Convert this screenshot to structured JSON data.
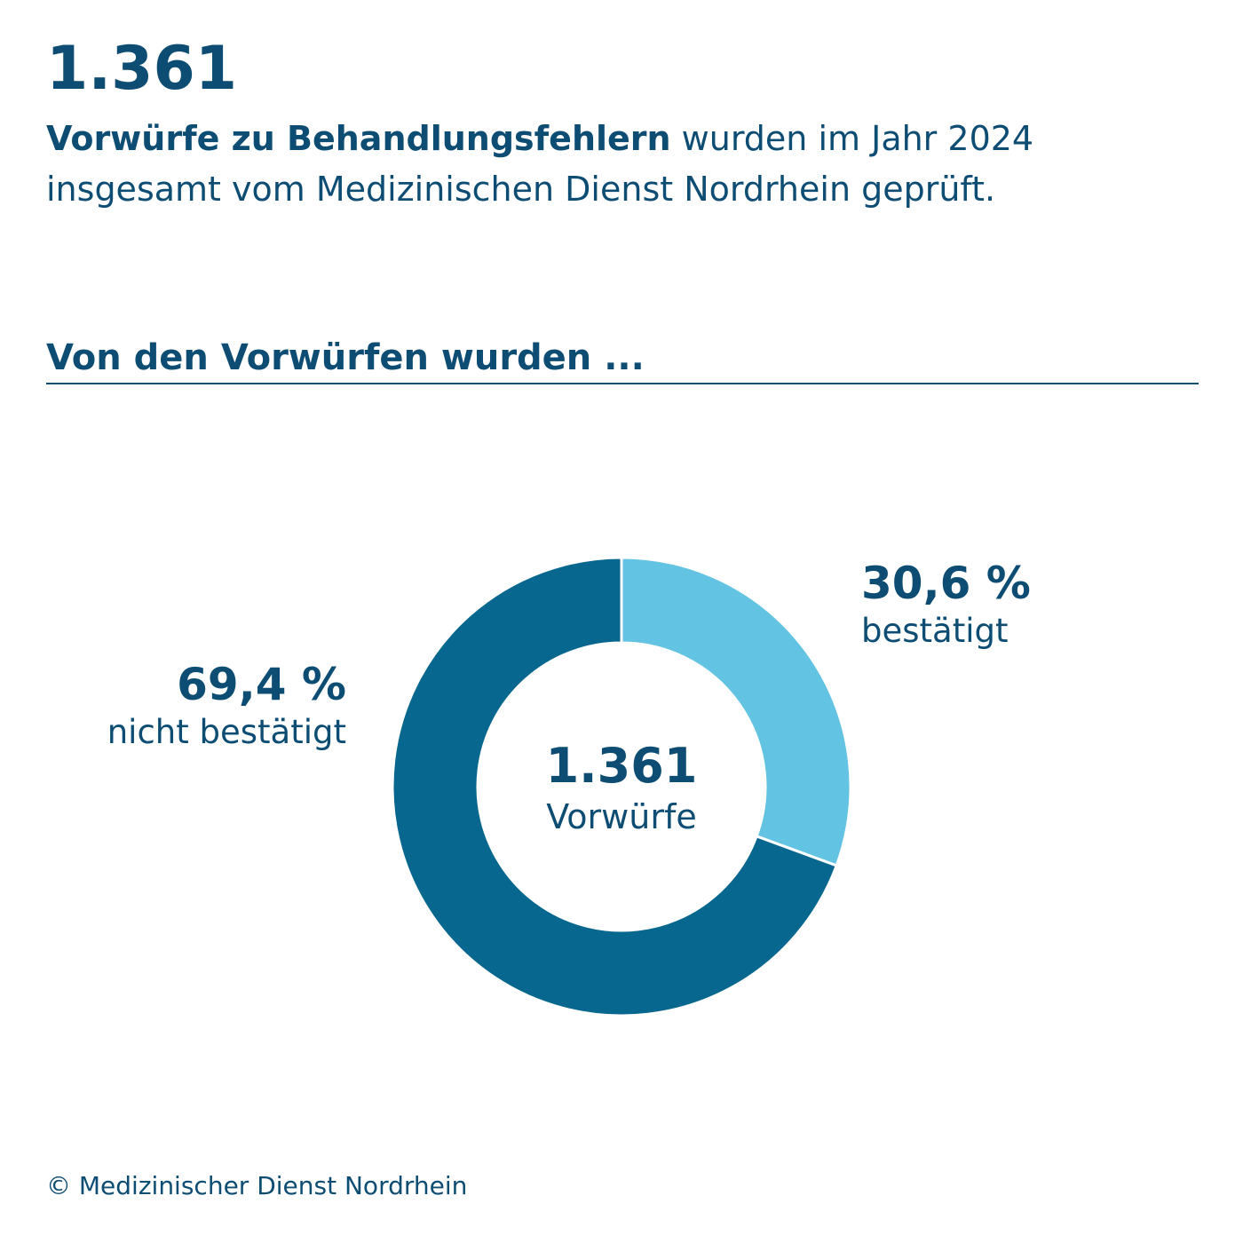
{
  "headline": {
    "number": "1.361",
    "text_bold": "Vorwürfe zu Behandlungsfehlern",
    "text_rest": " wurden im Jahr 2024 insgesamt vom Medizinischen Dienst Nordrhein geprüft."
  },
  "section": {
    "heading": "Von den Vorwürfen wurden ..."
  },
  "chart_data": {
    "type": "pie",
    "donut": true,
    "total": 1361,
    "center_value": "1.361",
    "center_caption": "Vorwürfe",
    "slices": [
      {
        "label": "bestätigt",
        "value": 30.6,
        "display": "30,6 %",
        "color": "#62c3e3"
      },
      {
        "label": "nicht bestätigt",
        "value": 69.4,
        "display": "69,4 %",
        "color": "#08678e"
      }
    ]
  },
  "footer": {
    "copyright": "© Medizinischer Dienst Nordrhein"
  },
  "colors": {
    "text": "#0d4d73",
    "dark_slice": "#08678e",
    "light_slice": "#62c3e3",
    "background": "#ffffff"
  }
}
